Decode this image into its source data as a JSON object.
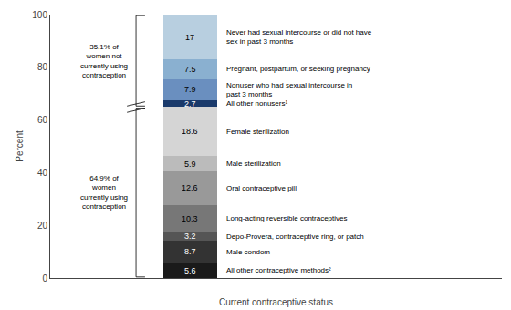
{
  "chart_data": {
    "type": "bar",
    "stacked": true,
    "categories": [
      null
    ],
    "series": [
      {
        "name": "All other contraceptive methods²",
        "color": "#1a1a1a",
        "values": [
          5.6
        ]
      },
      {
        "name": "Male condom",
        "color": "#333333",
        "values": [
          8.7
        ]
      },
      {
        "name": "Depo-Provera, contraceptive ring, or patch",
        "color": "#555555",
        "values": [
          3.2
        ]
      },
      {
        "name": "Long-acting reversible contraceptives",
        "color": "#777777",
        "values": [
          10.3
        ]
      },
      {
        "name": "Oral contraceptive pill",
        "color": "#999999",
        "values": [
          12.6
        ]
      },
      {
        "name": "Male sterilization",
        "color": "#bbbbbb",
        "values": [
          5.9
        ]
      },
      {
        "name": "Female sterilization",
        "color": "#d5d5d5",
        "values": [
          18.6
        ]
      },
      {
        "name": "All other nonusers¹",
        "color": "#1a3a6b",
        "values": [
          2.7
        ]
      },
      {
        "name": "Nonuser who had sexual intercourse in\npast 3 months",
        "color": "#6a8fbf",
        "values": [
          7.9
        ]
      },
      {
        "name": "Pregnant, postpartum, or seeking pregnancy",
        "color": "#8ab0d0",
        "values": [
          7.5
        ]
      },
      {
        "name": "Never had sexual intercourse or did not have\nsex in past 3 months",
        "color": "#b8cfe0",
        "values": [
          17.0
        ]
      }
    ],
    "x_label": "Current contraceptive status",
    "y_label": "Percent",
    "ylim": [
      0,
      100
    ],
    "yticks": [
      0,
      20,
      40,
      60,
      80,
      100
    ],
    "grid": false,
    "data_labels": true,
    "annotations": [
      {
        "text": "64.9% of\nwomen\ncurrently using\ncontraception",
        "range": [
          0,
          64.9
        ]
      },
      {
        "text": "35.1% of\nwomen not\ncurrently using\ncontraception",
        "range": [
          64.9,
          100
        ]
      }
    ]
  }
}
